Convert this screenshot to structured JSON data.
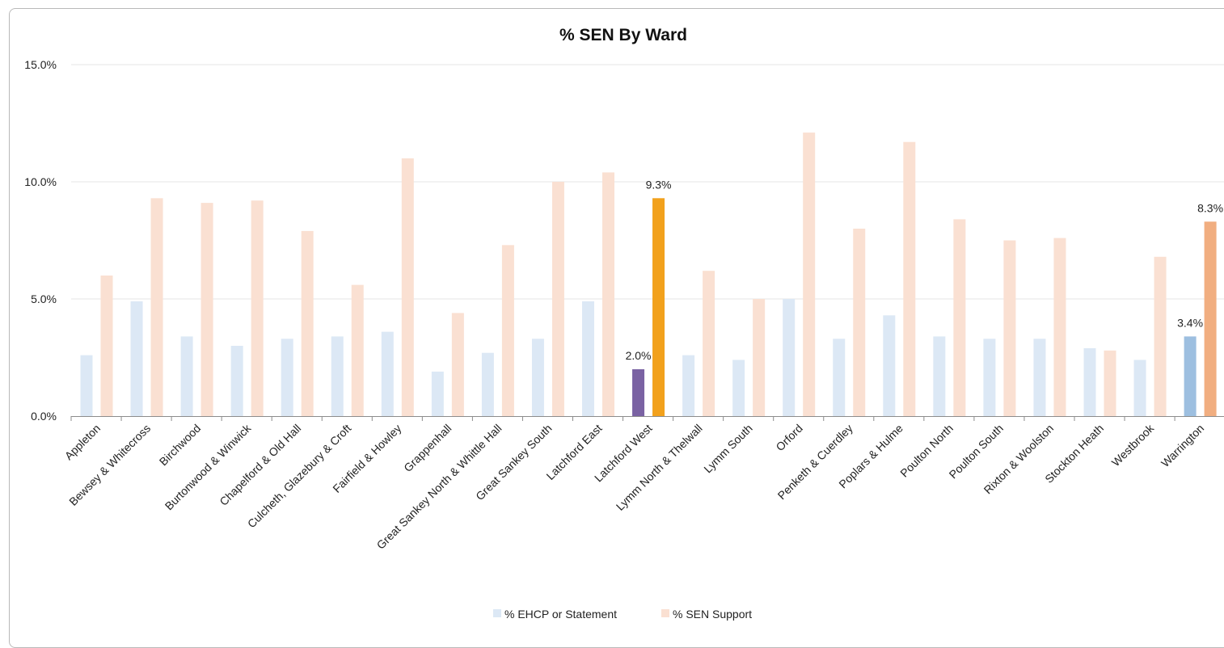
{
  "chart_data": {
    "type": "bar",
    "title": "% SEN By Ward",
    "xlabel": "",
    "ylabel": "",
    "ylim": [
      0,
      15
    ],
    "yticks": [
      "0.0%",
      "5.0%",
      "10.0%",
      "15.0%"
    ],
    "ytick_values": [
      0,
      5,
      10,
      15
    ],
    "categories": [
      "Appleton",
      "Bewsey & Whitecross",
      "Birchwood",
      "Burtonwood & Winwick",
      "Chapelford & Old Hall",
      "Culcheth, Glazebury & Croft",
      "Fairfield & Howley",
      "Grappenhall",
      "Great Sankey North & Whittle Hall",
      "Great Sankey South",
      "Latchford East",
      "Latchford West",
      "Lymm North & Thelwall",
      "Lymm South",
      "Orford",
      "Penketh & Cuerdley",
      "Poplars & Hulme",
      "Poulton North",
      "Poulton South",
      "Rixton & Woolston",
      "Stockton Heath",
      "Westbrook",
      "Warrington"
    ],
    "series": [
      {
        "name": "% EHCP or Statement",
        "color": "#dce8f5",
        "values": [
          2.6,
          4.9,
          3.4,
          3.0,
          3.3,
          3.4,
          3.6,
          1.9,
          2.7,
          3.3,
          4.9,
          2.0,
          2.6,
          2.4,
          5.0,
          3.3,
          4.3,
          3.4,
          3.3,
          3.3,
          2.9,
          2.4,
          3.4
        ]
      },
      {
        "name": "% SEN Support",
        "color": "#fae0d2",
        "values": [
          6.0,
          9.3,
          9.1,
          9.2,
          7.9,
          5.6,
          11.0,
          4.4,
          7.3,
          10.0,
          10.4,
          9.3,
          6.2,
          5.0,
          12.1,
          8.0,
          11.7,
          8.4,
          7.5,
          7.6,
          2.8,
          6.8,
          8.3
        ]
      }
    ],
    "highlights": [
      {
        "category": "Latchford West",
        "series": 0,
        "color": "#7a62a3",
        "label": "2.0%"
      },
      {
        "category": "Latchford West",
        "series": 1,
        "color": "#f2a11c",
        "label": "9.3%"
      },
      {
        "category": "Warrington",
        "series": 0,
        "color": "#9dbfe0",
        "label": "3.4%"
      },
      {
        "category": "Warrington",
        "series": 1,
        "color": "#f1ae80",
        "label": "8.3%"
      }
    ],
    "legend": {
      "position": "bottom",
      "entries": [
        "% EHCP or Statement",
        "% SEN Support"
      ]
    },
    "grid": true
  }
}
